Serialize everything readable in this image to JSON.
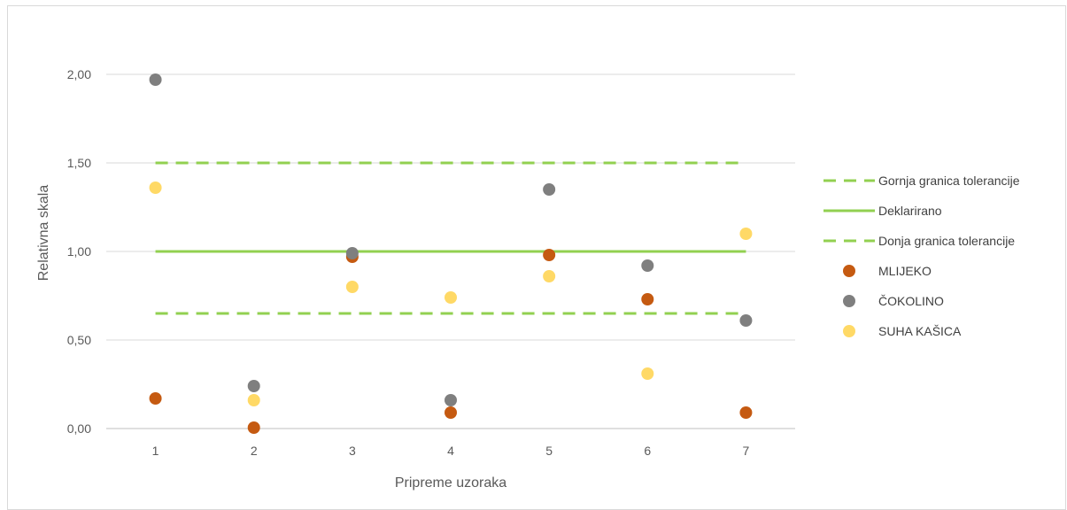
{
  "chart_data": {
    "type": "scatter",
    "xlabel": "Pripreme uzoraka",
    "ylabel": "Relativna skala",
    "x_categories": [
      "1",
      "2",
      "3",
      "4",
      "5",
      "6",
      "7"
    ],
    "ylim": [
      0,
      2
    ],
    "y_ticks": [
      "0,00",
      "0,50",
      "1,00",
      "1,50",
      "2,00"
    ],
    "grid": true,
    "legend_position": "right",
    "lines": [
      {
        "name": "Gornja granica tolerancije",
        "style": "dashed",
        "color": "#92d050",
        "values": [
          1.5,
          1.5,
          1.5,
          1.5,
          1.5,
          1.5,
          1.5
        ]
      },
      {
        "name": "Deklarirano",
        "style": "solid",
        "color": "#92d050",
        "values": [
          1,
          1,
          1,
          1,
          1,
          1,
          1
        ]
      },
      {
        "name": "Donja granica tolerancije",
        "style": "dashed",
        "color": "#92d050",
        "values": [
          0.65,
          0.65,
          0.65,
          0.65,
          0.65,
          0.65,
          0.65
        ]
      }
    ],
    "series": [
      {
        "name": "MLIJEKO",
        "color": "#c55a11",
        "values": [
          0.17,
          0.005,
          0.97,
          0.09,
          0.98,
          0.73,
          0.09
        ]
      },
      {
        "name": "ČOKOLINO",
        "color": "#7f7f7f",
        "values": [
          1.97,
          0.24,
          0.99,
          0.16,
          1.35,
          0.92,
          0.61
        ]
      },
      {
        "name": "SUHA KAŠICA",
        "color": "#ffd966",
        "values": [
          1.36,
          0.16,
          0.8,
          0.74,
          0.86,
          0.31,
          1.1
        ]
      }
    ]
  }
}
